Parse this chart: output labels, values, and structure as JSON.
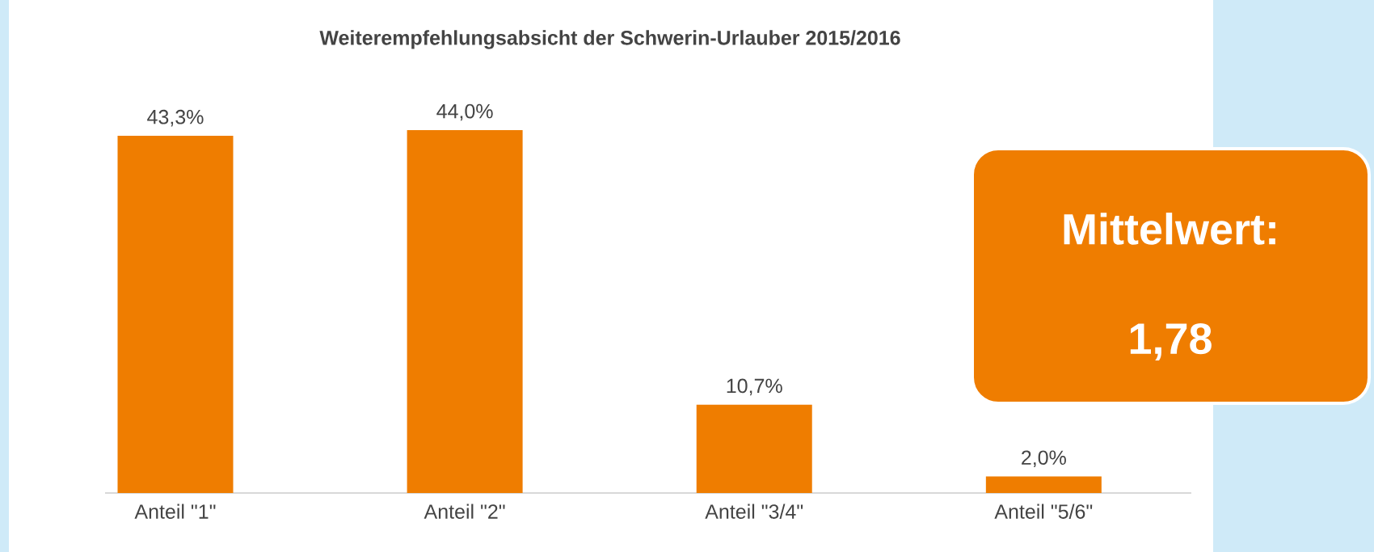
{
  "chart_data": {
    "type": "bar",
    "title": "Weiterempfehlungsabsicht der Schwerin-Urlauber 2015/2016",
    "categories": [
      "Anteil \"1\"",
      "Anteil \"2\"",
      "Anteil \"3/4\"",
      "Anteil \"5/6\""
    ],
    "values": [
      43.3,
      44.0,
      10.7,
      2.0
    ],
    "value_labels": [
      "43,3%",
      "44,0%",
      "10,7%",
      "2,0%"
    ],
    "color": "#ef7d00",
    "annotations": [
      "Mittelwert:",
      "1,78"
    ]
  }
}
